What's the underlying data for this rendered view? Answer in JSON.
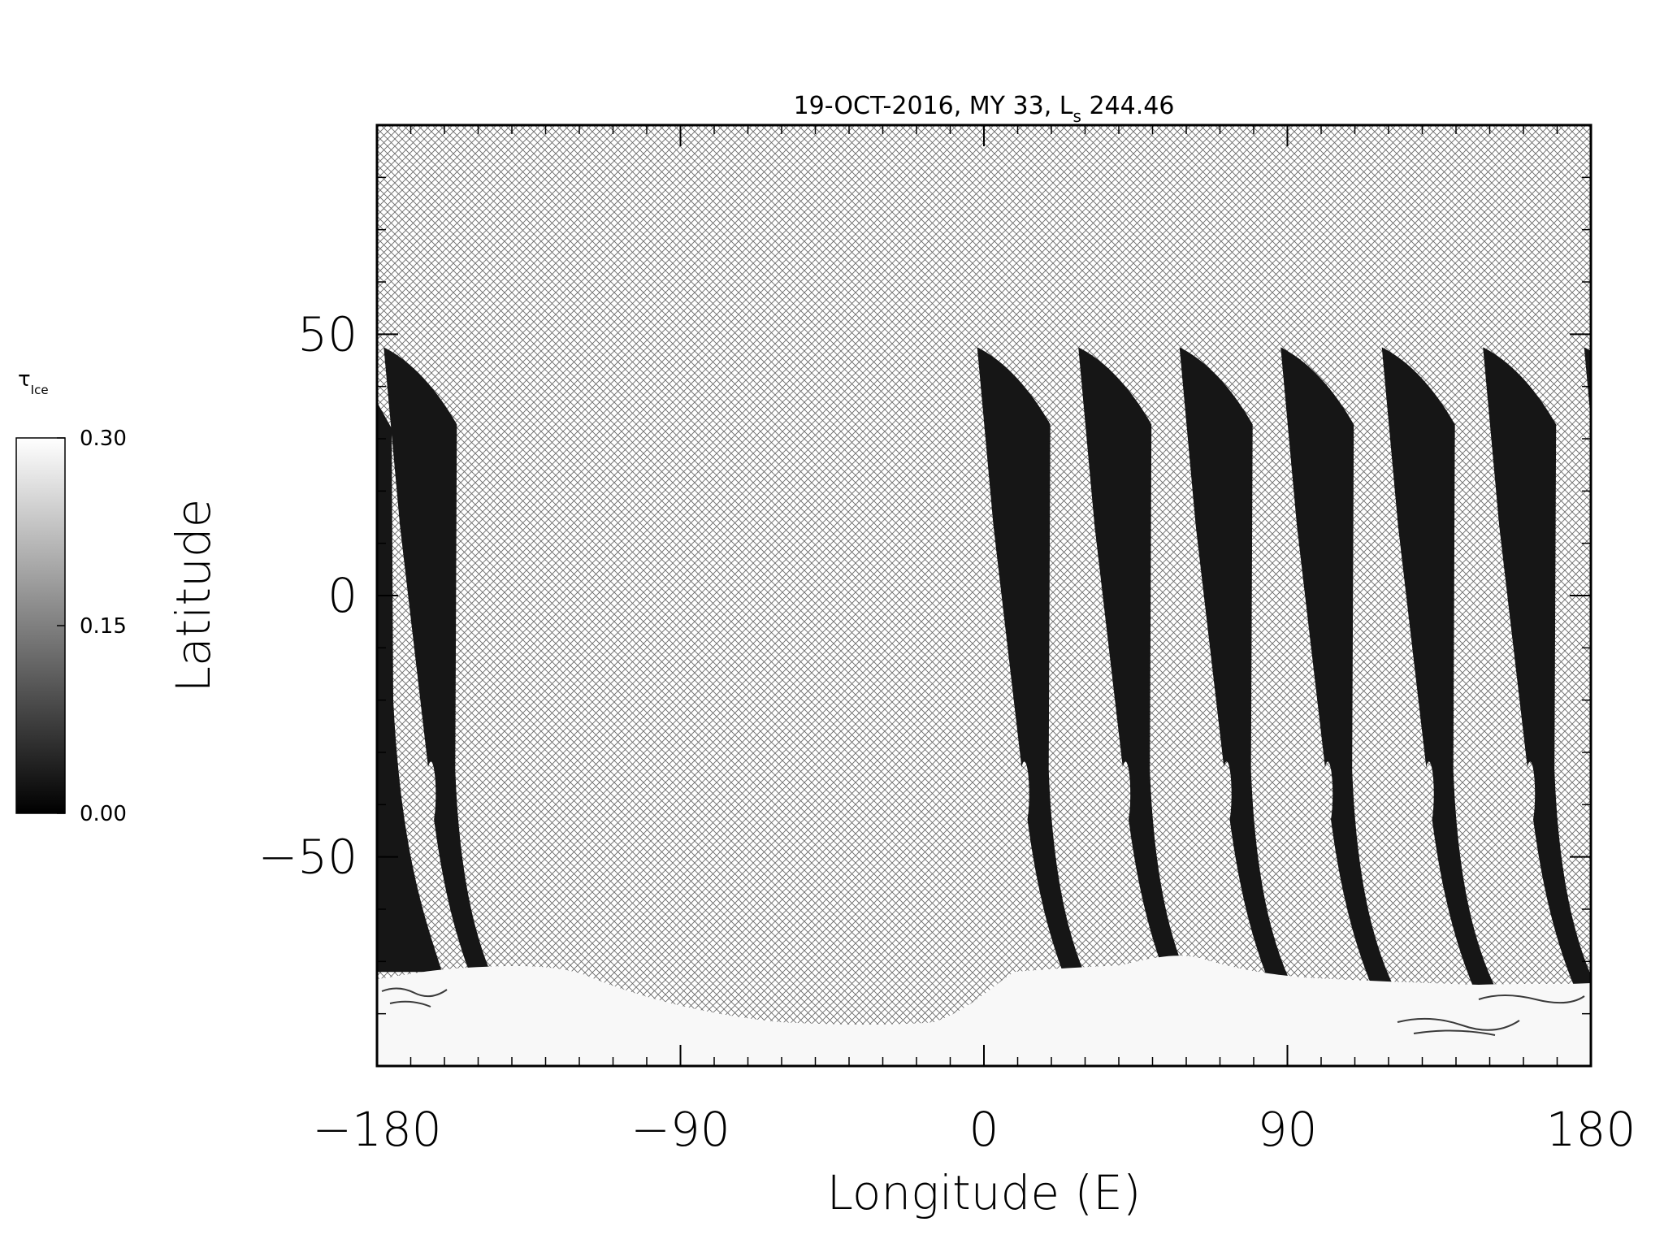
{
  "chart_data": {
    "type": "heatmap",
    "title_prefix": "19-OCT-2016, MY 33,  L",
    "title_subscript": "s",
    "title_suffix": " 244.46",
    "xlabel": "Longitude (E)",
    "ylabel": "Latitude",
    "xlim": [
      -180,
      180
    ],
    "ylim": [
      -90,
      90
    ],
    "x_ticks": [
      {
        "value": -180,
        "label": "−180"
      },
      {
        "value": -90,
        "label": "−90"
      },
      {
        "value": 0,
        "label": "0"
      },
      {
        "value": 90,
        "label": "90"
      },
      {
        "value": 180,
        "label": "180"
      }
    ],
    "y_ticks": [
      {
        "value": 50,
        "label": "50"
      },
      {
        "value": 0,
        "label": "0"
      },
      {
        "value": -50,
        "label": "−50"
      }
    ],
    "colorbar": {
      "label_symbol": "τ",
      "label_subscript": "Ice",
      "min": 0.0,
      "max": 0.3,
      "ticks": [
        {
          "value": 0.3,
          "label": "0.30"
        },
        {
          "value": 0.15,
          "label": "0.15"
        },
        {
          "value": 0.0,
          "label": "0.00"
        }
      ],
      "colormap": "grayscale"
    },
    "no_data_fill": "crosshatch",
    "swath_color": "#161616",
    "polar_cap_color": "#f8f8f8",
    "swaths": [
      {
        "id": "swath-1",
        "top_lon": -178,
        "top_lat": 47.5
      },
      {
        "id": "swath-2",
        "top_lon": -2,
        "top_lat": 47.5
      },
      {
        "id": "swath-3",
        "top_lon": 28,
        "top_lat": 47.5
      },
      {
        "id": "swath-4",
        "top_lon": 58,
        "top_lat": 47.5
      },
      {
        "id": "swath-5",
        "top_lon": 88,
        "top_lat": 47.5
      },
      {
        "id": "swath-6",
        "top_lon": 118,
        "top_lat": 47.5
      },
      {
        "id": "swath-7",
        "top_lon": 148,
        "top_lat": 47.5
      },
      {
        "id": "swath-8",
        "top_lon": 178,
        "top_lat": 47.5
      }
    ]
  }
}
